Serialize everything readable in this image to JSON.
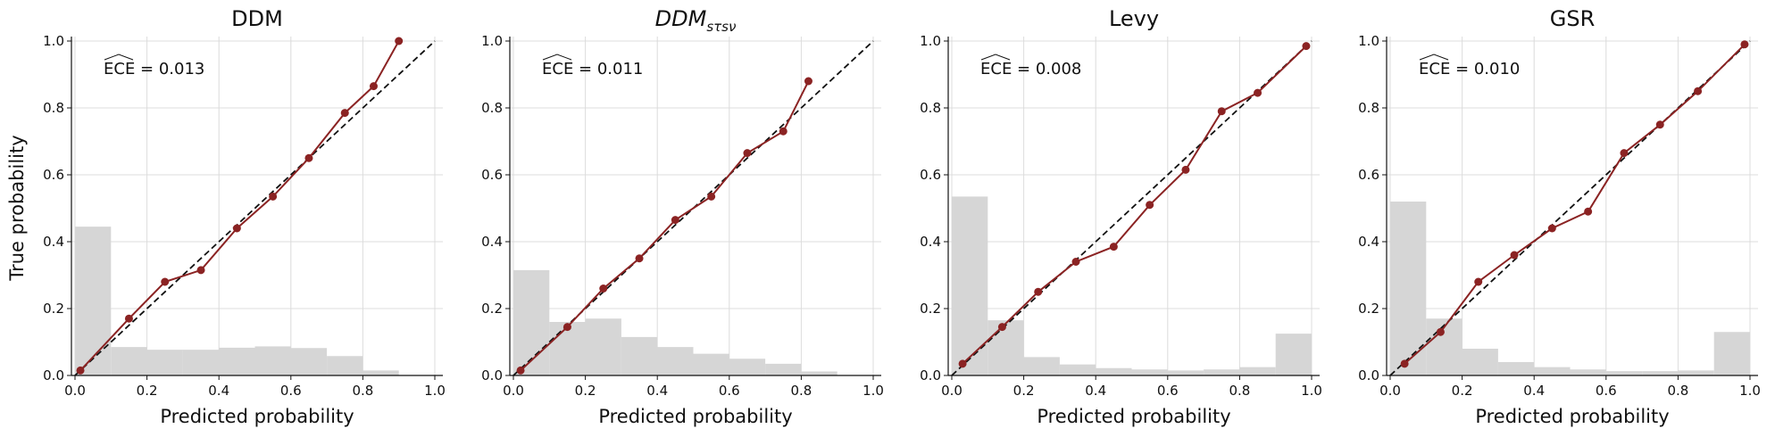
{
  "figure": {
    "ylabel": "True probability",
    "xlabel": "Predicted probability"
  },
  "colors": {
    "line": "#8b2323",
    "marker": "#8b2323",
    "histogram": "#d6d6d6",
    "diagonal": "#111111",
    "grid": "#dcdcdc"
  },
  "chart_data": [
    {
      "type": "line",
      "title": "DDM",
      "ece_label": "ECE = 0.013",
      "xlabel": "Predicted probability",
      "ylabel": "True probability",
      "xlim": [
        0,
        1
      ],
      "ylim": [
        0,
        1
      ],
      "xticks": [
        "0.0",
        "0.2",
        "0.4",
        "0.6",
        "0.8",
        "1.0"
      ],
      "yticks": [
        "0.0",
        "0.2",
        "0.4",
        "0.6",
        "0.8",
        "1.0"
      ],
      "calibration": {
        "x": [
          0.015,
          0.15,
          0.25,
          0.35,
          0.45,
          0.55,
          0.65,
          0.75,
          0.83,
          0.9
        ],
        "y": [
          0.015,
          0.17,
          0.28,
          0.315,
          0.44,
          0.535,
          0.65,
          0.785,
          0.865,
          1.0
        ]
      },
      "histogram": [
        0.445,
        0.085,
        0.077,
        0.077,
        0.083,
        0.087,
        0.082,
        0.058,
        0.015,
        0.0
      ]
    },
    {
      "type": "line",
      "title": "DDM_{sτsν}",
      "title_main": "DDM",
      "title_sub": "sτsν",
      "ece_label": "ECE = 0.011",
      "xlabel": "Predicted probability",
      "ylabel": "",
      "xlim": [
        0,
        1
      ],
      "ylim": [
        0,
        1
      ],
      "xticks": [
        "0.0",
        "0.2",
        "0.4",
        "0.6",
        "0.8",
        "1.0"
      ],
      "yticks": [
        "0.0",
        "0.2",
        "0.4",
        "0.6",
        "0.8",
        "1.0"
      ],
      "calibration": {
        "x": [
          0.02,
          0.15,
          0.25,
          0.35,
          0.45,
          0.55,
          0.65,
          0.75,
          0.82
        ],
        "y": [
          0.015,
          0.145,
          0.26,
          0.35,
          0.465,
          0.535,
          0.665,
          0.73,
          0.88
        ]
      },
      "histogram": [
        0.315,
        0.16,
        0.17,
        0.115,
        0.085,
        0.065,
        0.05,
        0.035,
        0.012,
        0.0
      ]
    },
    {
      "type": "line",
      "title": "Levy",
      "ece_label": "ECE = 0.008",
      "xlabel": "Predicted probability",
      "ylabel": "",
      "xlim": [
        0,
        1
      ],
      "ylim": [
        0,
        1
      ],
      "xticks": [
        "0.0",
        "0.2",
        "0.4",
        "0.6",
        "0.8",
        "1.0"
      ],
      "yticks": [
        "0.0",
        "0.2",
        "0.4",
        "0.6",
        "0.8",
        "1.0"
      ],
      "calibration": {
        "x": [
          0.03,
          0.14,
          0.24,
          0.345,
          0.45,
          0.55,
          0.65,
          0.75,
          0.85,
          0.985
        ],
        "y": [
          0.035,
          0.145,
          0.25,
          0.34,
          0.385,
          0.51,
          0.615,
          0.79,
          0.845,
          0.985
        ]
      },
      "histogram": [
        0.535,
        0.165,
        0.055,
        0.033,
        0.022,
        0.018,
        0.015,
        0.018,
        0.025,
        0.125
      ]
    },
    {
      "type": "line",
      "title": "GSR",
      "ece_label": "ECE = 0.010",
      "xlabel": "Predicted probability",
      "ylabel": "",
      "xlim": [
        0,
        1
      ],
      "ylim": [
        0,
        1
      ],
      "xticks": [
        "0.0",
        "0.2",
        "0.4",
        "0.6",
        "0.8",
        "1.0"
      ],
      "yticks": [
        "0.0",
        "0.2",
        "0.4",
        "0.6",
        "0.8",
        "1.0"
      ],
      "calibration": {
        "x": [
          0.04,
          0.14,
          0.245,
          0.345,
          0.45,
          0.55,
          0.65,
          0.75,
          0.855,
          0.985
        ],
        "y": [
          0.035,
          0.13,
          0.28,
          0.36,
          0.44,
          0.49,
          0.665,
          0.75,
          0.85,
          0.99
        ]
      },
      "histogram": [
        0.52,
        0.17,
        0.08,
        0.04,
        0.025,
        0.018,
        0.013,
        0.013,
        0.015,
        0.13
      ]
    }
  ]
}
